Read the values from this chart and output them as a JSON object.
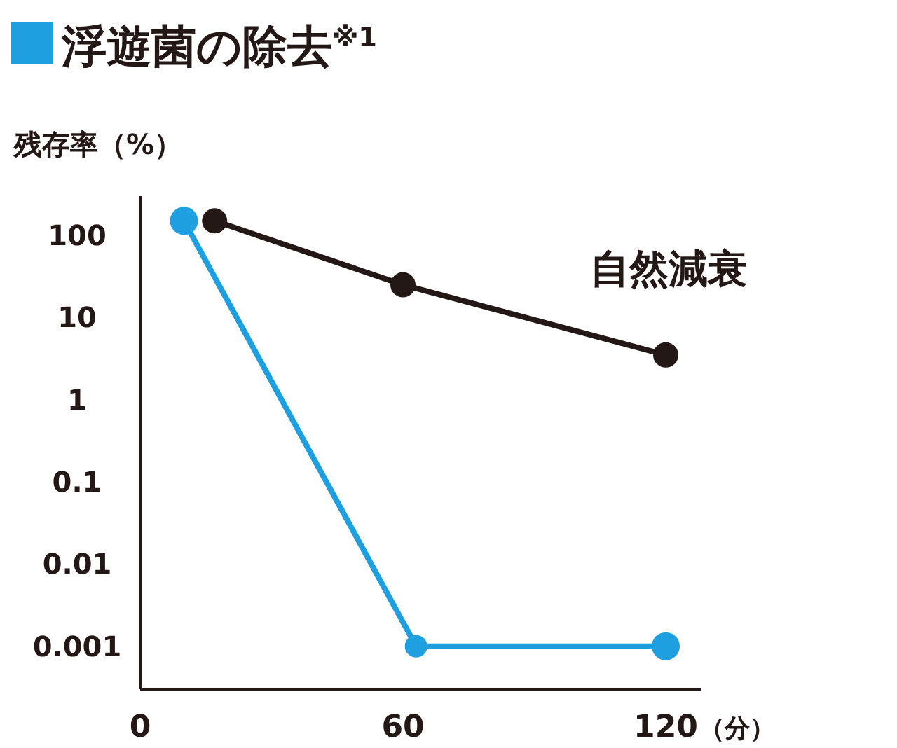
{
  "chart_data": {
    "type": "line",
    "title": "浮遊菌の除去$^{※1}$",
    "ylabel": "残存率（%）",
    "xlabel": "（分）",
    "log": "y",
    "grid": false,
    "marker": "circle",
    "line_style": "solid",
    "xlim": [
      0,
      128
    ],
    "xticks": [
      0,
      60,
      120
    ],
    "ylim": [
      0.0003,
      300
    ],
    "yticks": [
      0.001,
      0.01,
      0.1,
      1,
      10,
      100
    ],
    "series": [
      {
        "name": "自然減衰",
        "color": "#231815",
        "x": [
          17,
          60,
          120
        ],
        "values": [
          150,
          25,
          3.5
        ]
      },
      {
        "color": "#1ea0e0",
        "x": [
          10,
          63,
          120
        ],
        "values": [
          150,
          0.001,
          0.001
        ]
      }
    ]
  }
}
